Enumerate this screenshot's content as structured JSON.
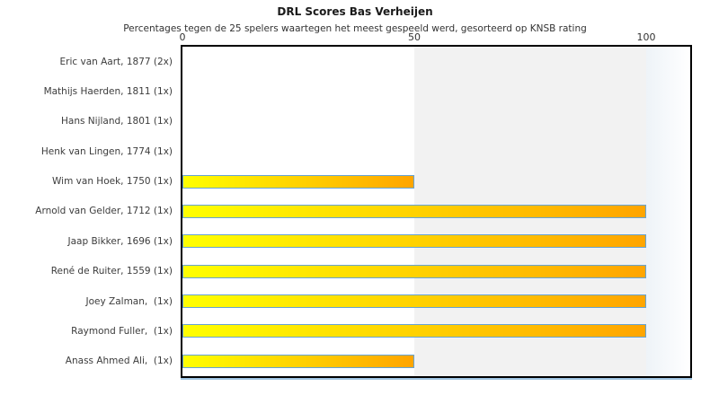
{
  "header": {
    "title": "DRL Scores Bas Verheijen",
    "subtitle": "Percentages tegen de 25 spelers waartegen het meest gespeeld werd, gesorteerd op KNSB rating"
  },
  "chart_data": {
    "type": "bar",
    "orientation": "horizontal",
    "title": "DRL Scores Bas Verheijen",
    "subtitle": "Percentages tegen de 25 spelers waartegen het meest gespeeld werd, gesorteerd op KNSB rating",
    "categories": [
      "Eric van Aart, 1877 (2x)",
      "Mathijs Haerden, 1811 (1x)",
      "Hans Nijland, 1801 (1x)",
      "Henk van Lingen, 1774 (1x)",
      "Wim van Hoek, 1750 (1x)",
      "Arnold van Gelder, 1712 (1x)",
      "Jaap Bikker, 1696 (1x)",
      "René de Ruiter, 1559 (1x)",
      "Joey Zalman,  (1x)",
      "Raymond Fuller,  (1x)",
      "Anass Ahmed Ali,  (1x)"
    ],
    "values": [
      0,
      0,
      0,
      0,
      50,
      100,
      100,
      100,
      100,
      100,
      50
    ],
    "xlabel": "",
    "ylabel": "",
    "xlim": [
      0,
      110
    ],
    "xticks": [
      0,
      50,
      100
    ],
    "axis_position": "top",
    "grid": false,
    "legend": false,
    "colors": {
      "bar_gradient_start": "#ffff00",
      "bar_gradient_end": "#ffa500",
      "bar_border": "#66a3d2",
      "band_gray": "#f2f2f2",
      "band_fade_start": "#eef3f8",
      "band_fade_end": "#ffffff",
      "plot_border": "#000000",
      "bottom_shadow": "#9dc2e0",
      "text": "#333333"
    }
  }
}
